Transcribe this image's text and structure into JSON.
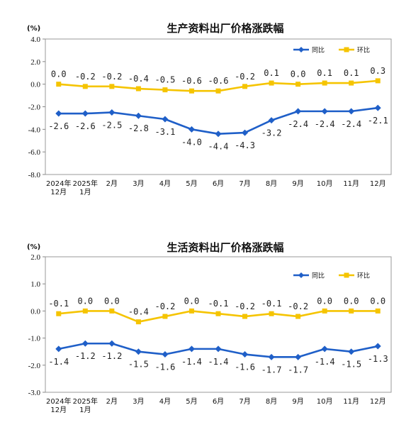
{
  "chart_data": [
    {
      "type": "line",
      "title": "生产资料出厂价格涨跌幅",
      "ylabel": "(%)",
      "ylim": [
        -8.0,
        4.0
      ],
      "ytick_step": 2.0,
      "grid": false,
      "legend_position": "top-right",
      "categories": [
        "2024年\n12月",
        "2025年\n1月",
        "2月",
        "3月",
        "4月",
        "5月",
        "6月",
        "7月",
        "8月",
        "9月",
        "10月",
        "11月",
        "12月"
      ],
      "series": [
        {
          "name": "同比",
          "color": "#1f5fc8",
          "marker": "diamond",
          "label_position": "below",
          "values": [
            -2.6,
            -2.6,
            -2.5,
            -2.8,
            -3.1,
            -4.0,
            -4.4,
            -4.3,
            -3.2,
            -2.4,
            -2.4,
            -2.4,
            -2.1
          ]
        },
        {
          "name": "环比",
          "color": "#f5c400",
          "marker": "square",
          "label_position": "above",
          "values": [
            0.0,
            -0.2,
            -0.2,
            -0.4,
            -0.5,
            -0.6,
            -0.6,
            -0.2,
            0.1,
            0.0,
            0.1,
            0.1,
            0.3
          ]
        }
      ]
    },
    {
      "type": "line",
      "title": "生活资料出厂价格涨跌幅",
      "ylabel": "(%)",
      "ylim": [
        -3.0,
        2.0
      ],
      "ytick_step": 1.0,
      "grid": false,
      "legend_position": "top-right",
      "categories": [
        "2024年\n12月",
        "2025年\n1月",
        "2月",
        "3月",
        "4月",
        "5月",
        "6月",
        "7月",
        "8月",
        "9月",
        "10月",
        "11月",
        "12月"
      ],
      "series": [
        {
          "name": "同比",
          "color": "#1f5fc8",
          "marker": "diamond",
          "label_position": "below",
          "values": [
            -1.4,
            -1.2,
            -1.2,
            -1.5,
            -1.6,
            -1.4,
            -1.4,
            -1.6,
            -1.7,
            -1.7,
            -1.4,
            -1.5,
            -1.3
          ]
        },
        {
          "name": "环比",
          "color": "#f5c400",
          "marker": "square",
          "label_position": "above",
          "values": [
            -0.1,
            0.0,
            0.0,
            -0.4,
            -0.2,
            0.0,
            -0.1,
            -0.2,
            -0.1,
            -0.2,
            0.0,
            0.0,
            0.0
          ]
        }
      ]
    }
  ]
}
